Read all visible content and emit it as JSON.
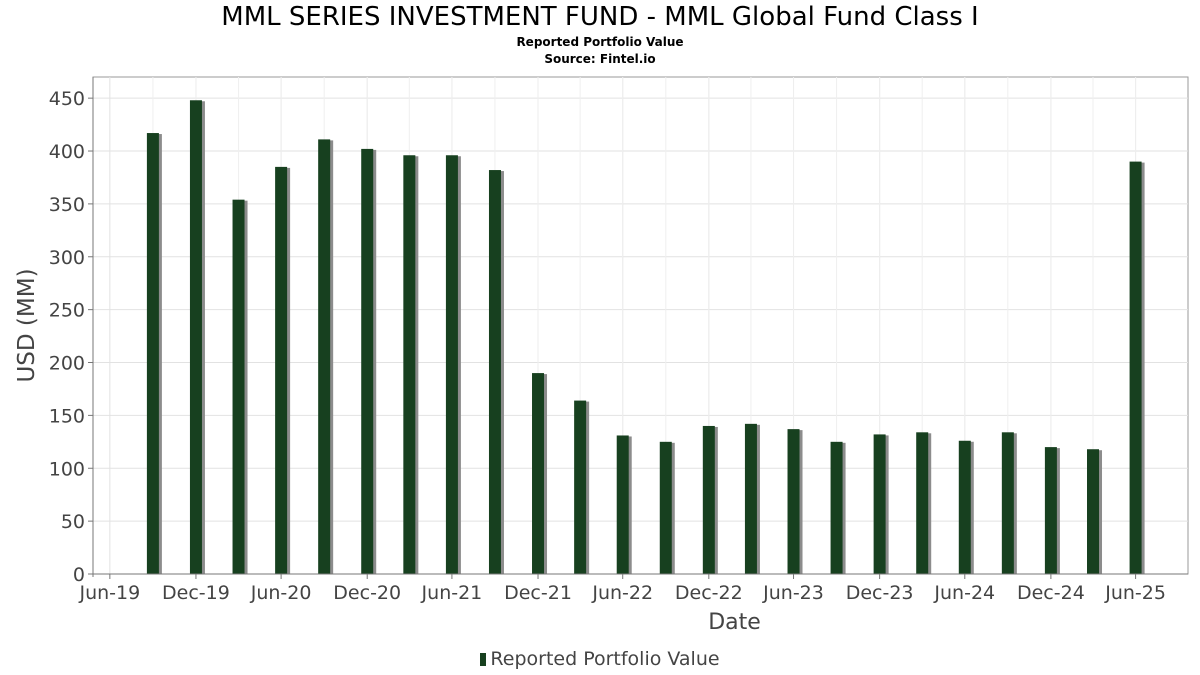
{
  "header": {
    "title": "MML SERIES INVESTMENT FUND - MML Global Fund Class I",
    "subtitle": "Reported Portfolio Value",
    "source": "Source: Fintel.io"
  },
  "legend": {
    "label": "Reported Portfolio Value"
  },
  "colors": {
    "bar": "#17401f",
    "shadow": "#8c8c8c",
    "grid": "#e2e2e2",
    "axis": "#777777",
    "text": "#444444"
  },
  "chart_data": {
    "type": "bar",
    "title": "MML SERIES INVESTMENT FUND - MML Global Fund Class I",
    "subtitle": "Reported Portfolio Value",
    "xlabel": "Date",
    "ylabel": "USD (MM)",
    "ylim": [
      0,
      470
    ],
    "yticks": [
      0,
      50,
      100,
      150,
      200,
      250,
      300,
      350,
      400,
      450
    ],
    "xlim": [
      "2019-05-25",
      "2025-10-20"
    ],
    "xticks": [
      {
        "label": "Jun-19",
        "date": "2019-06-30"
      },
      {
        "label": "Dec-19",
        "date": "2019-12-31"
      },
      {
        "label": "Jun-20",
        "date": "2020-06-30"
      },
      {
        "label": "Dec-20",
        "date": "2020-12-31"
      },
      {
        "label": "Jun-21",
        "date": "2021-06-30"
      },
      {
        "label": "Dec-21",
        "date": "2021-12-31"
      },
      {
        "label": "Jun-22",
        "date": "2022-06-30"
      },
      {
        "label": "Dec-22",
        "date": "2022-12-31"
      },
      {
        "label": "Jun-23",
        "date": "2023-06-30"
      },
      {
        "label": "Dec-23",
        "date": "2023-12-31"
      },
      {
        "label": "Jun-24",
        "date": "2024-06-30"
      },
      {
        "label": "Dec-24",
        "date": "2024-12-31"
      },
      {
        "label": "Jun-25",
        "date": "2025-06-30"
      }
    ],
    "grid": true,
    "legend_position": "bottom-center",
    "series": [
      {
        "name": "Reported Portfolio Value",
        "points": [
          {
            "date": "2019-09-30",
            "value": 417
          },
          {
            "date": "2019-12-31",
            "value": 448
          },
          {
            "date": "2020-03-31",
            "value": 354
          },
          {
            "date": "2020-06-30",
            "value": 385
          },
          {
            "date": "2020-09-30",
            "value": 411
          },
          {
            "date": "2020-12-31",
            "value": 402
          },
          {
            "date": "2021-03-31",
            "value": 396
          },
          {
            "date": "2021-06-30",
            "value": 396
          },
          {
            "date": "2021-09-30",
            "value": 382
          },
          {
            "date": "2021-12-31",
            "value": 190
          },
          {
            "date": "2022-03-31",
            "value": 164
          },
          {
            "date": "2022-06-30",
            "value": 131
          },
          {
            "date": "2022-09-30",
            "value": 125
          },
          {
            "date": "2022-12-31",
            "value": 140
          },
          {
            "date": "2023-03-31",
            "value": 142
          },
          {
            "date": "2023-06-30",
            "value": 137
          },
          {
            "date": "2023-09-30",
            "value": 125
          },
          {
            "date": "2023-12-31",
            "value": 132
          },
          {
            "date": "2024-03-31",
            "value": 134
          },
          {
            "date": "2024-06-30",
            "value": 126
          },
          {
            "date": "2024-09-30",
            "value": 134
          },
          {
            "date": "2024-12-31",
            "value": 120
          },
          {
            "date": "2025-03-31",
            "value": 118
          },
          {
            "date": "2025-06-30",
            "value": 390
          }
        ]
      }
    ]
  }
}
